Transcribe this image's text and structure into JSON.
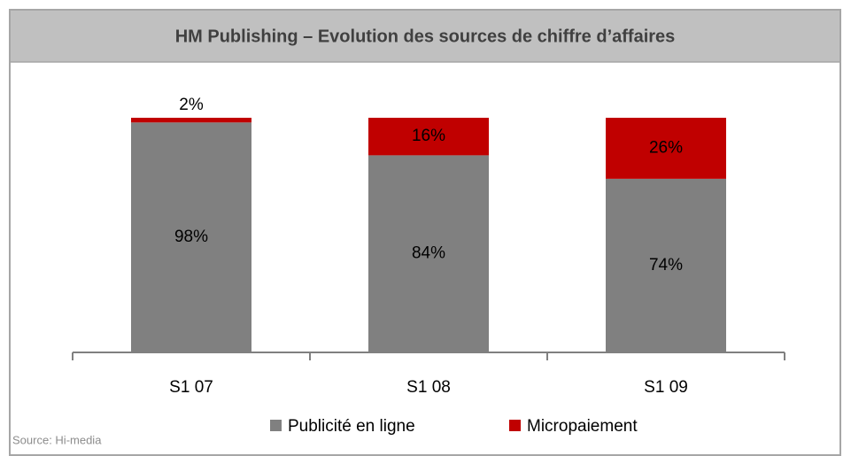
{
  "chart_data": {
    "type": "stacked_bar",
    "title": "HM Publishing – Evolution des sources de chiffre d’affaires",
    "categories": [
      "S1 07",
      "S1 08",
      "S1 09"
    ],
    "series": [
      {
        "name": "Publicité en ligne",
        "color": "#808080",
        "values": [
          98,
          84,
          74
        ],
        "value_labels": [
          "98%",
          "84%",
          "74%"
        ]
      },
      {
        "name": "Micropaiement",
        "color": "#c00000",
        "values": [
          2,
          16,
          26
        ],
        "value_labels": [
          "2%",
          "16%",
          "26%"
        ]
      }
    ],
    "ylim": [
      0,
      100
    ],
    "source": "Source: Hi-media"
  }
}
